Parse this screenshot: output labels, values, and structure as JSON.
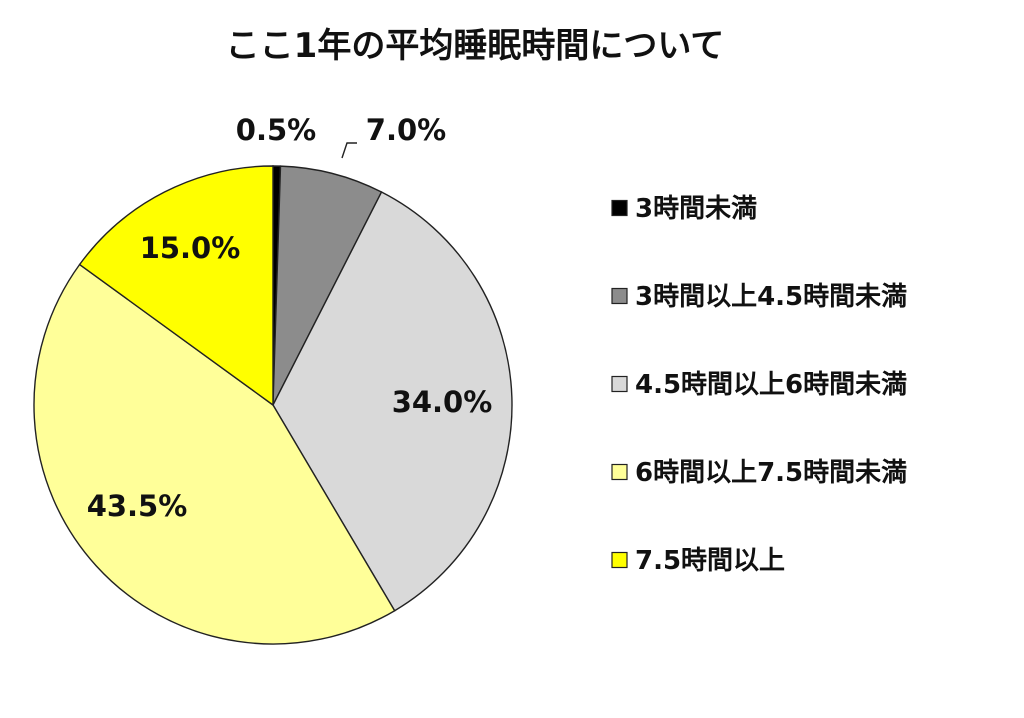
{
  "chart_data": {
    "type": "pie",
    "title": "ここ1年の平均睡眠時間について",
    "legend_position": "right",
    "slices": [
      {
        "label": "3時間未満",
        "value": 0.5,
        "display": "0.5%",
        "color": "#000000"
      },
      {
        "label": "3時間以上4.5時間未満",
        "value": 7.0,
        "display": "7.0%",
        "color": "#8c8c8c"
      },
      {
        "label": "4.5時間以上6時間未満",
        "value": 34.0,
        "display": "34.0%",
        "color": "#d9d9d9"
      },
      {
        "label": "6時間以上7.5時間未満",
        "value": 43.5,
        "display": "43.5%",
        "color": "#ffff99"
      },
      {
        "label": "7.5時間以上",
        "value": 15.0,
        "display": "15.0%",
        "color": "#ffff00"
      }
    ]
  }
}
